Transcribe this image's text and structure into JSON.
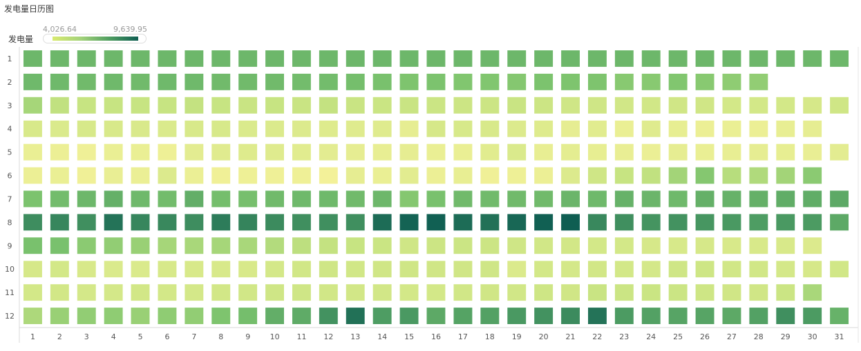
{
  "chart_title": "发电量日历图",
  "legend": {
    "label": "发电量",
    "min_text": "4,026.64",
    "max_text": "9,639.95"
  },
  "colors": {
    "low": "#f5f29a",
    "mid1": "#a5d67a",
    "mid2": "#4f9e63",
    "high": "#0d5c52"
  },
  "chart_data": {
    "type": "heatmap",
    "title": "发电量日历图",
    "xlabel": "",
    "ylabel": "",
    "x_categories": [
      "1",
      "2",
      "3",
      "4",
      "5",
      "6",
      "7",
      "8",
      "9",
      "10",
      "11",
      "12",
      "13",
      "14",
      "15",
      "16",
      "17",
      "18",
      "19",
      "20",
      "21",
      "22",
      "23",
      "24",
      "25",
      "26",
      "27",
      "28",
      "29",
      "30",
      "31"
    ],
    "y_categories": [
      "1",
      "2",
      "3",
      "4",
      "5",
      "6",
      "7",
      "8",
      "9",
      "10",
      "11",
      "12"
    ],
    "color_range": [
      4026.64,
      9639.95
    ],
    "values": [
      [
        7500,
        7500,
        7500,
        7500,
        7500,
        7500,
        7500,
        7500,
        7500,
        7500,
        7500,
        7500,
        7500,
        7500,
        7500,
        7500,
        7500,
        7500,
        7500,
        7500,
        7500,
        7500,
        7500,
        7500,
        7500,
        7500,
        7500,
        7500,
        7500,
        7500,
        7500
      ],
      [
        7450,
        7450,
        7400,
        7450,
        7400,
        7450,
        7450,
        7400,
        7400,
        7400,
        7350,
        7350,
        7300,
        7200,
        7100,
        7150,
        7050,
        7050,
        7000,
        7150,
        7100,
        7100,
        6950,
        6950,
        7050,
        6950,
        6850,
        6800,
        null,
        null,
        null
      ],
      [
        6500,
        6100,
        6000,
        6000,
        6000,
        6000,
        6050,
        6000,
        5950,
        6000,
        5950,
        6050,
        5950,
        5900,
        5950,
        5850,
        5800,
        5800,
        5950,
        5800,
        5700,
        5700,
        5600,
        5600,
        5650,
        5650,
        5500,
        5500,
        5500,
        5400,
        5700
      ],
      [
        5300,
        5200,
        5350,
        5300,
        5250,
        5200,
        5300,
        5350,
        5200,
        5150,
        5100,
        5050,
        5000,
        5000,
        4700,
        5400,
        5350,
        5300,
        5100,
        5050,
        4700,
        4900,
        4500,
        5000,
        4650,
        4400,
        4500,
        4400,
        4600,
        4700,
        null
      ],
      [
        4500,
        4400,
        4300,
        4500,
        4500,
        4350,
        4800,
        4950,
        5050,
        5000,
        4900,
        4800,
        4700,
        4600,
        4700,
        4500,
        4500,
        4900,
        5200,
        4600,
        4750,
        4650,
        4550,
        4450,
        4700,
        4500,
        4600,
        4700,
        4650,
        4550,
        4800
      ],
      [
        4400,
        4500,
        4250,
        4550,
        4450,
        5100,
        4450,
        4250,
        4350,
        4300,
        4300,
        4100,
        4700,
        4500,
        4850,
        4400,
        4600,
        4250,
        4350,
        4400,
        5100,
        5700,
        6000,
        6100,
        6550,
        7000,
        6250,
        6350,
        6550,
        6900,
        null
      ],
      [
        7150,
        7350,
        7500,
        7700,
        7450,
        7350,
        7750,
        7300,
        7250,
        7400,
        7450,
        7450,
        7400,
        7500,
        7000,
        7200,
        7400,
        7400,
        7400,
        7400,
        7550,
        7450,
        7650,
        7550,
        7450,
        7700,
        7650,
        7700,
        7800,
        7800,
        7900
      ],
      [
        8600,
        8750,
        8550,
        9150,
        8750,
        8700,
        8600,
        8950,
        8800,
        8650,
        8550,
        8550,
        8550,
        9300,
        9500,
        9550,
        9300,
        9200,
        9400,
        9550,
        9600,
        8700,
        8550,
        8450,
        8500,
        8400,
        8350,
        8250,
        8350,
        8300,
        7900
      ],
      [
        7200,
        7200,
        6900,
        6800,
        6700,
        6500,
        6450,
        6500,
        6450,
        6300,
        6150,
        6050,
        6000,
        5900,
        5700,
        5800,
        5850,
        5800,
        5700,
        5600,
        5550,
        5500,
        5500,
        5400,
        5350,
        5400,
        5300,
        5300,
        5300,
        5100,
        null
      ],
      [
        5400,
        5500,
        5300,
        5200,
        5200,
        5350,
        5300,
        5300,
        5300,
        5450,
        5600,
        5700,
        5600,
        5650,
        5700,
        5650,
        5650,
        5700,
        5150,
        5500,
        5450,
        5550,
        5500,
        5450,
        5700,
        5750,
        5600,
        5600,
        5450,
        5400,
        5600
      ],
      [
        5500,
        5550,
        5450,
        5450,
        5550,
        5500,
        5450,
        5550,
        5600,
        5700,
        5700,
        5600,
        5550,
        5550,
        5500,
        5500,
        5600,
        5650,
        5600,
        5750,
        5650,
        5950,
        5850,
        5900,
        5850,
        5750,
        5650,
        5650,
        5850,
        6450,
        null
      ],
      [
        6400,
        6700,
        6800,
        6850,
        6700,
        6850,
        6800,
        7100,
        7300,
        7750,
        7850,
        8500,
        9200,
        8250,
        8350,
        7900,
        8100,
        8150,
        8350,
        8500,
        8650,
        9150,
        8300,
        8150,
        8050,
        8050,
        7900,
        8150,
        8550,
        8300,
        7650
      ]
    ]
  }
}
